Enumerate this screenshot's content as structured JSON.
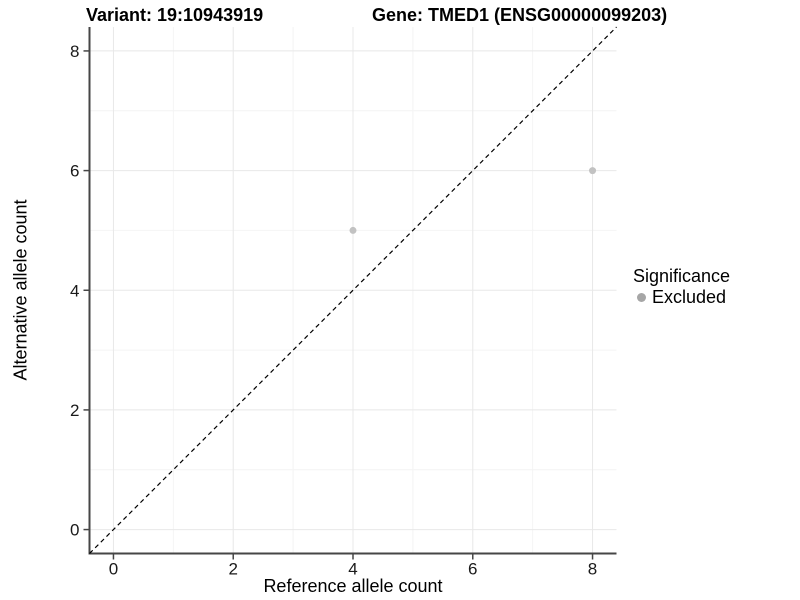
{
  "header": {
    "variant_title": "Variant: 19:10943919",
    "gene_title": "Gene: TMED1 (ENSG00000099203)"
  },
  "chart_data": {
    "type": "scatter",
    "xlabel": "Reference allele count",
    "ylabel": "Alternative allele count",
    "xlim": [
      -0.4,
      8.4
    ],
    "ylim": [
      -0.4,
      8.4
    ],
    "x_ticks": [
      0,
      2,
      4,
      6,
      8
    ],
    "y_ticks": [
      0,
      2,
      4,
      6,
      8
    ],
    "x_minor_ticks": [
      1,
      3,
      5,
      7
    ],
    "y_minor_ticks": [
      1,
      3,
      5,
      7
    ],
    "grid": "major and minor, light gray on white panel",
    "reference_line": {
      "slope": 1,
      "intercept": 0,
      "style": "dashed",
      "color": "#000000"
    },
    "series": [
      {
        "name": "Excluded",
        "color": "#c2c2c2",
        "points": [
          {
            "x": 4,
            "y": 5
          },
          {
            "x": 8,
            "y": 6
          }
        ]
      }
    ],
    "legend": {
      "title": "Significance",
      "position": "right",
      "items": [
        {
          "label": "Excluded",
          "marker": "circle",
          "color": "#a6a6a6"
        }
      ]
    }
  },
  "style": {
    "background": "#ffffff",
    "grid_major_color": "#e8e8e8",
    "grid_minor_color": "#f4f4f4",
    "axis_line_color": "#464646",
    "tick_label_color": "#1a1a1a",
    "text_color": "#000000"
  }
}
